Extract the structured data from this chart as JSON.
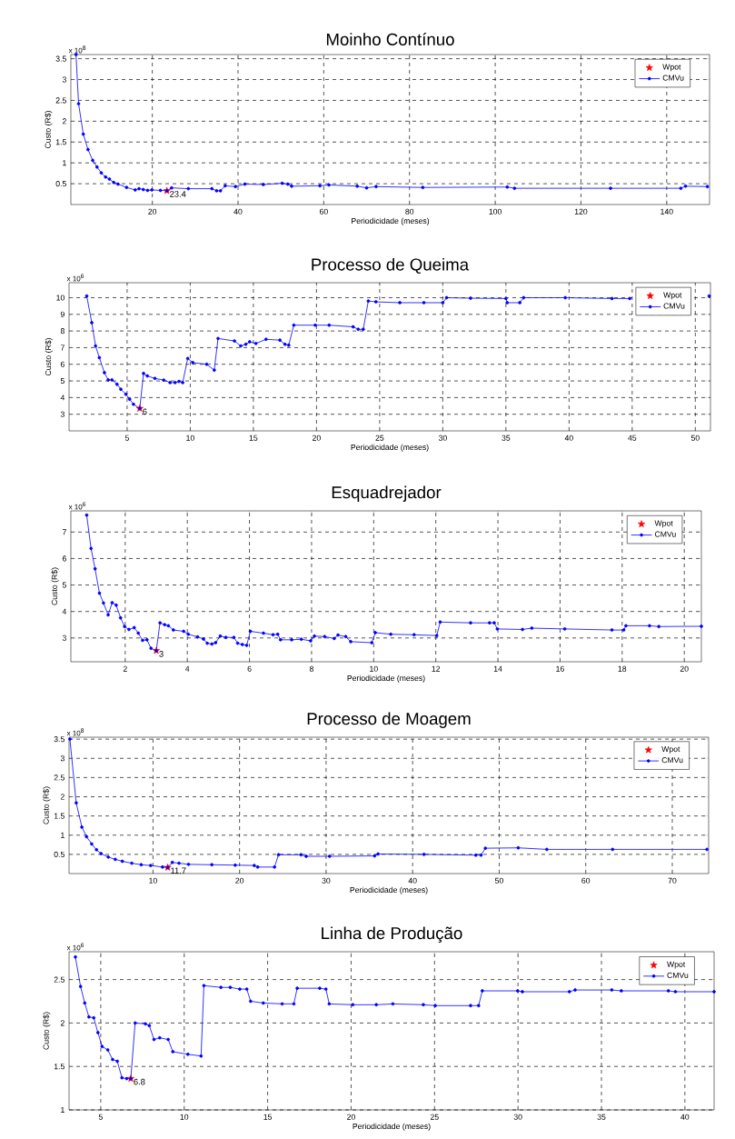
{
  "chart_data": [
    {
      "type": "line",
      "title": "Moinho Contínuo",
      "xlabel": "Periodicidade (meses)",
      "ylabel": "Custo (R$)",
      "annotations": [
        "x 10$^{8}$",
        {
          "text": "23.4",
          "x": 23.4,
          "y": 0.33
        }
      ],
      "xlim": [
        1,
        150
      ],
      "ylim": [
        0,
        3.6
      ],
      "xticks": [
        20,
        40,
        60,
        80,
        100,
        120,
        140
      ],
      "yticks": [
        0.5,
        1,
        1.5,
        2,
        2.5,
        3,
        3.5
      ],
      "grid": true,
      "legend": "top right",
      "series": [
        {
          "name": "Wpot",
          "type": "scatter",
          "marker": "star",
          "color": "#ff0000",
          "x": [
            23.4
          ],
          "values": [
            0.33
          ]
        },
        {
          "name": "CMVu",
          "marker": "circle",
          "color": "#0000ff",
          "x": [
            2.2,
            2.8,
            3.9,
            5.0,
            6.1,
            7.1,
            8.1,
            9.1,
            10.0,
            11.0,
            12.0,
            14.0,
            16.0,
            16.9,
            17.9,
            18.9,
            19.9,
            21.9,
            23.4,
            24.5,
            28.4,
            33.9,
            35.0,
            35.9,
            37.0,
            39.4,
            41.6,
            45.9,
            50.3,
            51.6,
            52.5,
            59.1,
            61.2,
            67.8,
            70.0,
            72.2,
            83.1,
            102.8,
            104.5,
            126.9,
            143.3,
            144.4,
            149.5
          ],
          "values": [
            3.6,
            2.42,
            1.69,
            1.32,
            1.06,
            0.9,
            0.76,
            0.66,
            0.61,
            0.53,
            0.49,
            0.41,
            0.35,
            0.38,
            0.36,
            0.34,
            0.35,
            0.34,
            0.33,
            0.4,
            0.38,
            0.38,
            0.33,
            0.33,
            0.45,
            0.43,
            0.49,
            0.48,
            0.51,
            0.49,
            0.44,
            0.45,
            0.47,
            0.44,
            0.4,
            0.43,
            0.41,
            0.42,
            0.39,
            0.39,
            0.39,
            0.44,
            0.43
          ]
        }
      ]
    },
    {
      "type": "line",
      "title": "Processo de Queima",
      "xlabel": "Periodicidade (meses)",
      "ylabel": "Custo (R$)",
      "annotations": [
        "x 10$^{6}$",
        {
          "text": "6",
          "x": 6,
          "y": 3.35
        }
      ],
      "xlim": [
        0.4,
        51.2
      ],
      "ylim": [
        2,
        10.9
      ],
      "xticks": [
        5,
        10,
        15,
        20,
        25,
        30,
        35,
        40,
        45,
        50
      ],
      "yticks": [
        3,
        4,
        5,
        6,
        7,
        8,
        9,
        10
      ],
      "grid": true,
      "legend": "top right",
      "series": [
        {
          "name": "Wpot",
          "type": "scatter",
          "marker": "star",
          "color": "#ff0000",
          "x": [
            6
          ],
          "values": [
            3.35
          ]
        },
        {
          "name": "CMVu",
          "marker": "circle",
          "color": "#0000ff",
          "x": [
            1.8,
            2.2,
            2.5,
            2.8,
            3.2,
            3.5,
            3.8,
            4.2,
            4.5,
            4.9,
            5.2,
            5.5,
            6.0,
            6.3,
            6.6,
            7.2,
            7.9,
            8.4,
            8.8,
            9.1,
            9.4,
            9.8,
            10.2,
            11.3,
            11.9,
            12.2,
            13.5,
            14.0,
            14.4,
            14.7,
            15.2,
            16.0,
            17.1,
            17.5,
            17.8,
            18.2,
            19.9,
            21.0,
            22.9,
            23.3,
            23.7,
            24.1,
            24.7,
            26.6,
            28.5,
            30.0,
            30.3,
            32.2,
            35.0,
            35.1,
            36.1,
            36.4,
            39.7,
            43.4,
            44.8,
            48,
            51.1
          ],
          "values": [
            10.1,
            8.5,
            7.1,
            6.4,
            5.5,
            5.06,
            5.06,
            4.8,
            4.5,
            4.2,
            3.9,
            3.6,
            3.35,
            5.45,
            5.3,
            5.15,
            5.05,
            4.9,
            4.9,
            4.97,
            4.9,
            6.35,
            6.1,
            6.0,
            5.65,
            7.55,
            7.4,
            7.1,
            7.2,
            7.35,
            7.25,
            7.5,
            7.45,
            7.2,
            7.15,
            8.35,
            8.35,
            8.35,
            8.25,
            8.1,
            8.1,
            9.8,
            9.75,
            9.7,
            9.7,
            9.7,
            10.0,
            9.97,
            9.95,
            9.7,
            9.7,
            10.0,
            10.0,
            9.95,
            9.95,
            null,
            10.1
          ]
        }
      ]
    },
    {
      "type": "line",
      "title": "Esquadrejador",
      "xlabel": "Periodicidade (meses)",
      "ylabel": "Custo (R$)",
      "annotations": [
        "x 10$^{6}$",
        {
          "text": "3",
          "x": 3,
          "y": 2.52
        }
      ],
      "xlim": [
        0.25,
        20.55
      ],
      "ylim": [
        2.1,
        7.8
      ],
      "xticks": [
        2,
        4,
        6,
        8,
        10,
        12,
        14,
        16,
        18,
        20
      ],
      "yticks": [
        3,
        4,
        5,
        6,
        7
      ],
      "grid": true,
      "legend": "top right",
      "series": [
        {
          "name": "Wpot",
          "type": "scatter",
          "marker": "star",
          "color": "#ff0000",
          "x": [
            3
          ],
          "values": [
            2.52
          ]
        },
        {
          "name": "CMVu",
          "marker": "circle",
          "color": "#0000ff",
          "x": [
            0.76,
            0.9,
            1.03,
            1.17,
            1.3,
            1.45,
            1.58,
            1.71,
            1.85,
            1.98,
            2.12,
            2.29,
            2.42,
            2.56,
            2.7,
            2.83,
            3.0,
            3.12,
            3.27,
            3.39,
            3.55,
            3.88,
            4.03,
            4.33,
            4.52,
            4.64,
            4.79,
            4.91,
            5.06,
            5.24,
            5.5,
            5.62,
            5.77,
            5.91,
            6.03,
            6.45,
            6.76,
            6.91,
            7.0,
            7.36,
            7.67,
            7.97,
            8.09,
            8.42,
            8.73,
            8.85,
            9.1,
            9.26,
            9.94,
            10.05,
            10.55,
            11.3,
            12.03,
            12.14,
            13.12,
            13.73,
            13.88,
            13.98,
            14.79,
            15.09,
            16.15,
            17.67,
            18.05,
            18.12,
            18.88,
            19.18,
            20.55
          ],
          "values": [
            7.64,
            6.38,
            5.61,
            4.69,
            4.32,
            3.87,
            4.33,
            4.24,
            3.76,
            3.43,
            3.32,
            3.39,
            3.18,
            2.91,
            2.93,
            2.61,
            2.52,
            3.57,
            3.5,
            3.46,
            3.3,
            3.25,
            3.14,
            3.04,
            2.96,
            2.8,
            2.77,
            2.82,
            3.07,
            3.02,
            3.02,
            2.8,
            2.75,
            2.72,
            3.25,
            3.18,
            3.12,
            3.14,
            2.93,
            2.93,
            2.95,
            2.89,
            3.07,
            3.05,
            2.98,
            3.11,
            3.05,
            2.86,
            2.82,
            3.2,
            3.14,
            3.12,
            3.09,
            3.6,
            3.57,
            3.57,
            3.57,
            3.34,
            3.32,
            3.37,
            3.34,
            3.3,
            3.3,
            3.46,
            3.46,
            3.43,
            3.44
          ]
        }
      ]
    },
    {
      "type": "line",
      "title": "Processo de Moagem",
      "xlabel": "Periodicidade (meses)",
      "ylabel": "Custo (R$)",
      "annotations": [
        "x 10$^{8}$",
        {
          "text": "11.7",
          "x": 11.7,
          "y": 0.16
        }
      ],
      "xlim": [
        0.3,
        74.2
      ],
      "ylim": [
        0,
        3.55
      ],
      "xticks": [
        10,
        20,
        30,
        40,
        50,
        60,
        70
      ],
      "yticks": [
        0.5,
        1,
        1.5,
        2,
        2.5,
        3,
        3.5
      ],
      "grid": true,
      "legend": "top right",
      "series": [
        {
          "name": "Wpot",
          "type": "scatter",
          "marker": "star",
          "color": "#ff0000",
          "x": [
            11.7
          ],
          "values": [
            0.16
          ]
        },
        {
          "name": "CMVu",
          "marker": "circle",
          "color": "#0000ff",
          "x": [
            0.4,
            1.13,
            1.78,
            2.32,
            2.92,
            3.47,
            4.0,
            4.83,
            5.64,
            6.46,
            7.55,
            8.64,
            9.73,
            11.1,
            11.7,
            12.23,
            13.0,
            14.1,
            16.8,
            19.5,
            21.7,
            22.1,
            24.04,
            24.5,
            27.1,
            27.7,
            30.4,
            35.6,
            36.0,
            41.3,
            47.3,
            47.9,
            48.4,
            52.2,
            55.5,
            63.1,
            74.0
          ],
          "values": [
            3.5,
            1.84,
            1.21,
            0.96,
            0.77,
            0.62,
            0.52,
            0.43,
            0.37,
            0.32,
            0.27,
            0.23,
            0.21,
            0.17,
            0.16,
            0.29,
            0.27,
            0.24,
            0.23,
            0.22,
            0.21,
            0.17,
            0.17,
            0.49,
            0.49,
            0.45,
            0.45,
            0.46,
            0.51,
            0.5,
            0.48,
            0.48,
            0.66,
            0.67,
            0.63,
            0.63,
            0.63
          ]
        }
      ]
    },
    {
      "type": "line",
      "title": "Linha de Produção",
      "xlabel": "Periodicidade (meses)",
      "ylabel": "Custo (R$)",
      "annotations": [
        "x 10$^{6}$",
        {
          "text": "6.8",
          "x": 6.8,
          "y": 1.36
        }
      ],
      "xlim": [
        3.1,
        41.75
      ],
      "ylim": [
        1,
        2.82
      ],
      "xticks": [
        5,
        10,
        15,
        20,
        25,
        30,
        35,
        40
      ],
      "yticks": [
        1,
        1.5,
        2,
        2.5
      ],
      "grid": true,
      "legend": "top right",
      "series": [
        {
          "name": "Wpot",
          "type": "scatter",
          "marker": "star",
          "color": "#ff0000",
          "x": [
            6.8
          ],
          "values": [
            1.36
          ]
        },
        {
          "name": "CMVu",
          "marker": "circle",
          "color": "#0000ff",
          "x": [
            3.48,
            3.79,
            4.04,
            4.29,
            4.58,
            4.83,
            5.08,
            5.42,
            5.71,
            5.99,
            6.27,
            6.55,
            6.8,
            7.06,
            7.68,
            7.91,
            8.19,
            8.53,
            9.04,
            9.32,
            10.22,
            11.01,
            11.18,
            12.2,
            12.76,
            13.33,
            13.75,
            13.98,
            14.74,
            15.87,
            16.57,
            16.77,
            18.12,
            18.49,
            18.69,
            20.1,
            21.51,
            22.5,
            24.33,
            25.04,
            27.16,
            27.64,
            27.86,
            29.98,
            30.26,
            33.08,
            33.42,
            35.62,
            36.19,
            39.01,
            39.43,
            41.75
          ],
          "values": [
            2.76,
            2.42,
            2.23,
            2.07,
            2.06,
            1.89,
            1.73,
            1.69,
            1.58,
            1.56,
            1.37,
            1.36,
            1.36,
            2.0,
            1.99,
            1.97,
            1.81,
            1.83,
            1.81,
            1.67,
            1.64,
            1.62,
            2.43,
            2.41,
            2.41,
            2.39,
            2.39,
            2.25,
            2.23,
            2.22,
            2.22,
            2.4,
            2.4,
            2.39,
            2.22,
            2.21,
            2.21,
            2.22,
            2.21,
            2.2,
            2.2,
            2.2,
            2.37,
            2.37,
            2.36,
            2.36,
            2.38,
            2.38,
            2.37,
            2.37,
            2.36,
            2.36
          ]
        }
      ]
    }
  ]
}
